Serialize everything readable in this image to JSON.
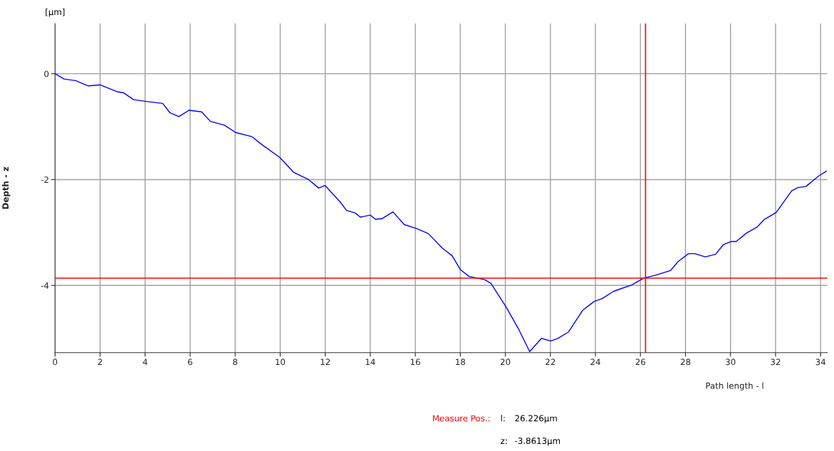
{
  "chart_data": {
    "type": "line",
    "xlabel": "Path length - l",
    "ylabel": "Depth - z",
    "x": [
      0,
      0.41,
      0.92,
      1.48,
      2.01,
      2.76,
      3.04,
      3.49,
      3.99,
      4.38,
      4.78,
      5.11,
      5.5,
      5.95,
      6.51,
      6.9,
      7.52,
      8.02,
      8.75,
      9.19,
      9.98,
      10.59,
      11.26,
      11.71,
      11.99,
      12.66,
      12.94,
      13.33,
      13.56,
      14.0,
      14.23,
      14.51,
      15.01,
      15.51,
      16.02,
      16.58,
      17.19,
      17.64,
      18.0,
      18.39,
      19.08,
      19.36,
      20.01,
      20.57,
      21.08,
      21.6,
      22.02,
      22.34,
      22.8,
      23.43,
      23.95,
      24.29,
      24.81,
      25.21,
      25.61,
      26.15,
      26.64,
      27.33,
      27.67,
      28.13,
      28.42,
      28.88,
      29.34,
      29.68,
      30.02,
      30.25,
      30.71,
      31.17,
      31.51,
      32.03,
      32.72,
      33.0,
      33.35,
      33.92,
      34.26
    ],
    "series": [
      {
        "color": "#0000ff",
        "values": [
          0,
          -0.1,
          -0.13,
          -0.23,
          -0.21,
          -0.34,
          -0.36,
          -0.49,
          -0.52,
          -0.54,
          -0.56,
          -0.74,
          -0.81,
          -0.69,
          -0.72,
          -0.9,
          -0.97,
          -1.11,
          -1.19,
          -1.34,
          -1.58,
          -1.86,
          -2.0,
          -2.16,
          -2.11,
          -2.42,
          -2.58,
          -2.63,
          -2.71,
          -2.67,
          -2.75,
          -2.74,
          -2.61,
          -2.85,
          -2.92,
          -3.02,
          -3.29,
          -3.44,
          -3.7,
          -3.83,
          -3.89,
          -3.96,
          -4.39,
          -4.81,
          -5.25,
          -5.0,
          -5.05,
          -5.0,
          -4.88,
          -4.47,
          -4.3,
          -4.25,
          -4.11,
          -4.05,
          -3.99,
          -3.86,
          -3.81,
          -3.72,
          -3.55,
          -3.4,
          -3.4,
          -3.46,
          -3.41,
          -3.23,
          -3.17,
          -3.17,
          -3.01,
          -2.9,
          -2.75,
          -2.62,
          -2.21,
          -2.15,
          -2.13,
          -1.93,
          -1.84
        ]
      }
    ],
    "xlim": [
      0,
      34.3
    ],
    "ylim": [
      -5.27,
      0.95
    ],
    "xticks": [
      0,
      2,
      4,
      6,
      8,
      10,
      12,
      14,
      16,
      18,
      20,
      22,
      24,
      26,
      28,
      30,
      32,
      34
    ],
    "yticks": [
      0,
      -2,
      -4
    ],
    "grid": true,
    "ref_lines": [
      {
        "axis": "y",
        "value": -3.8613,
        "color": "#ff0000"
      },
      {
        "axis": "x",
        "value": 26.226,
        "color": "#ff0000"
      }
    ],
    "annotations": [
      "[µm]",
      "Measure Pos.:",
      "l:",
      "26.226µm",
      "z:",
      "-3.8613µm"
    ]
  }
}
